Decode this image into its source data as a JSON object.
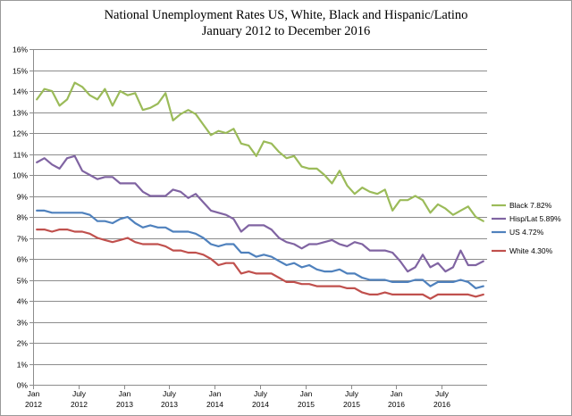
{
  "chart_data": {
    "type": "line",
    "title_line1": "National Unemployment Rates US, White, Black and Hispanic/Latino",
    "title_line2": "January 2012 to December 2016",
    "ylim": [
      0,
      16
    ],
    "y_ticks": [
      "0%",
      "1%",
      "2%",
      "3%",
      "4%",
      "5%",
      "6%",
      "7%",
      "8%",
      "9%",
      "10%",
      "11%",
      "12%",
      "13%",
      "14%",
      "15%",
      "16%"
    ],
    "x_ticks": [
      {
        "month": "Jan",
        "year": "2012",
        "index": 0
      },
      {
        "month": "July",
        "year": "2012",
        "index": 6
      },
      {
        "month": "Jan",
        "year": "2013",
        "index": 12
      },
      {
        "month": "July",
        "year": "2013",
        "index": 18
      },
      {
        "month": "Jan",
        "year": "2014",
        "index": 24
      },
      {
        "month": "July",
        "year": "2014",
        "index": 30
      },
      {
        "month": "Jan",
        "year": "2015",
        "index": 36
      },
      {
        "month": "July",
        "year": "2015",
        "index": 42
      },
      {
        "month": "Jan",
        "year": "2016",
        "index": 48
      },
      {
        "month": "July",
        "year": "2016",
        "index": 54
      }
    ],
    "series": [
      {
        "name": "Black 7.82%",
        "color": "#9bbb59",
        "values": [
          13.6,
          14.1,
          14.0,
          13.3,
          13.6,
          14.4,
          14.2,
          13.8,
          13.6,
          14.1,
          13.3,
          14.0,
          13.8,
          13.9,
          13.1,
          13.2,
          13.4,
          13.9,
          12.6,
          12.9,
          13.1,
          12.9,
          12.4,
          11.9,
          12.1,
          12.0,
          12.2,
          11.5,
          11.4,
          10.9,
          11.6,
          11.5,
          11.1,
          10.8,
          10.9,
          10.4,
          10.3,
          10.3,
          10.0,
          9.6,
          10.2,
          9.5,
          9.1,
          9.4,
          9.2,
          9.1,
          9.3,
          8.3,
          8.8,
          8.8,
          9.0,
          8.8,
          8.2,
          8.6,
          8.4,
          8.1,
          8.3,
          8.5,
          8.0,
          7.8
        ]
      },
      {
        "name": "Hisp/Lat 5.89%",
        "color": "#8064a2",
        "values": [
          10.6,
          10.8,
          10.5,
          10.3,
          10.8,
          10.9,
          10.2,
          10.0,
          9.8,
          9.9,
          9.9,
          9.6,
          9.6,
          9.6,
          9.2,
          9.0,
          9.0,
          9.0,
          9.3,
          9.2,
          8.9,
          9.1,
          8.7,
          8.3,
          8.2,
          8.1,
          7.9,
          7.3,
          7.6,
          7.6,
          7.6,
          7.4,
          7.0,
          6.8,
          6.7,
          6.5,
          6.7,
          6.7,
          6.8,
          6.9,
          6.7,
          6.6,
          6.8,
          6.7,
          6.4,
          6.4,
          6.4,
          6.3,
          5.9,
          5.4,
          5.6,
          6.2,
          5.6,
          5.8,
          5.4,
          5.6,
          6.4,
          5.7,
          5.7,
          5.89
        ]
      },
      {
        "name": "US 4.72%",
        "color": "#4f81bd",
        "values": [
          8.3,
          8.3,
          8.2,
          8.2,
          8.2,
          8.2,
          8.2,
          8.1,
          7.8,
          7.8,
          7.7,
          7.9,
          8.0,
          7.7,
          7.5,
          7.6,
          7.5,
          7.5,
          7.3,
          7.3,
          7.3,
          7.2,
          7.0,
          6.7,
          6.6,
          6.7,
          6.7,
          6.3,
          6.3,
          6.1,
          6.2,
          6.1,
          5.9,
          5.7,
          5.8,
          5.6,
          5.7,
          5.5,
          5.4,
          5.4,
          5.5,
          5.3,
          5.3,
          5.1,
          5.0,
          5.0,
          5.0,
          4.9,
          4.9,
          4.9,
          5.0,
          5.0,
          4.7,
          4.9,
          4.9,
          4.9,
          5.0,
          4.9,
          4.6,
          4.7
        ]
      },
      {
        "name": "White 4.30%",
        "color": "#c0504d",
        "values": [
          7.4,
          7.4,
          7.3,
          7.4,
          7.4,
          7.3,
          7.3,
          7.2,
          7.0,
          6.9,
          6.8,
          6.9,
          7.0,
          6.8,
          6.7,
          6.7,
          6.7,
          6.6,
          6.4,
          6.4,
          6.3,
          6.3,
          6.2,
          6.0,
          5.7,
          5.8,
          5.8,
          5.3,
          5.4,
          5.3,
          5.3,
          5.3,
          5.1,
          4.9,
          4.9,
          4.8,
          4.8,
          4.7,
          4.7,
          4.7,
          4.7,
          4.6,
          4.6,
          4.4,
          4.3,
          4.3,
          4.4,
          4.3,
          4.3,
          4.3,
          4.3,
          4.3,
          4.1,
          4.3,
          4.3,
          4.3,
          4.3,
          4.3,
          4.2,
          4.3
        ]
      }
    ]
  }
}
